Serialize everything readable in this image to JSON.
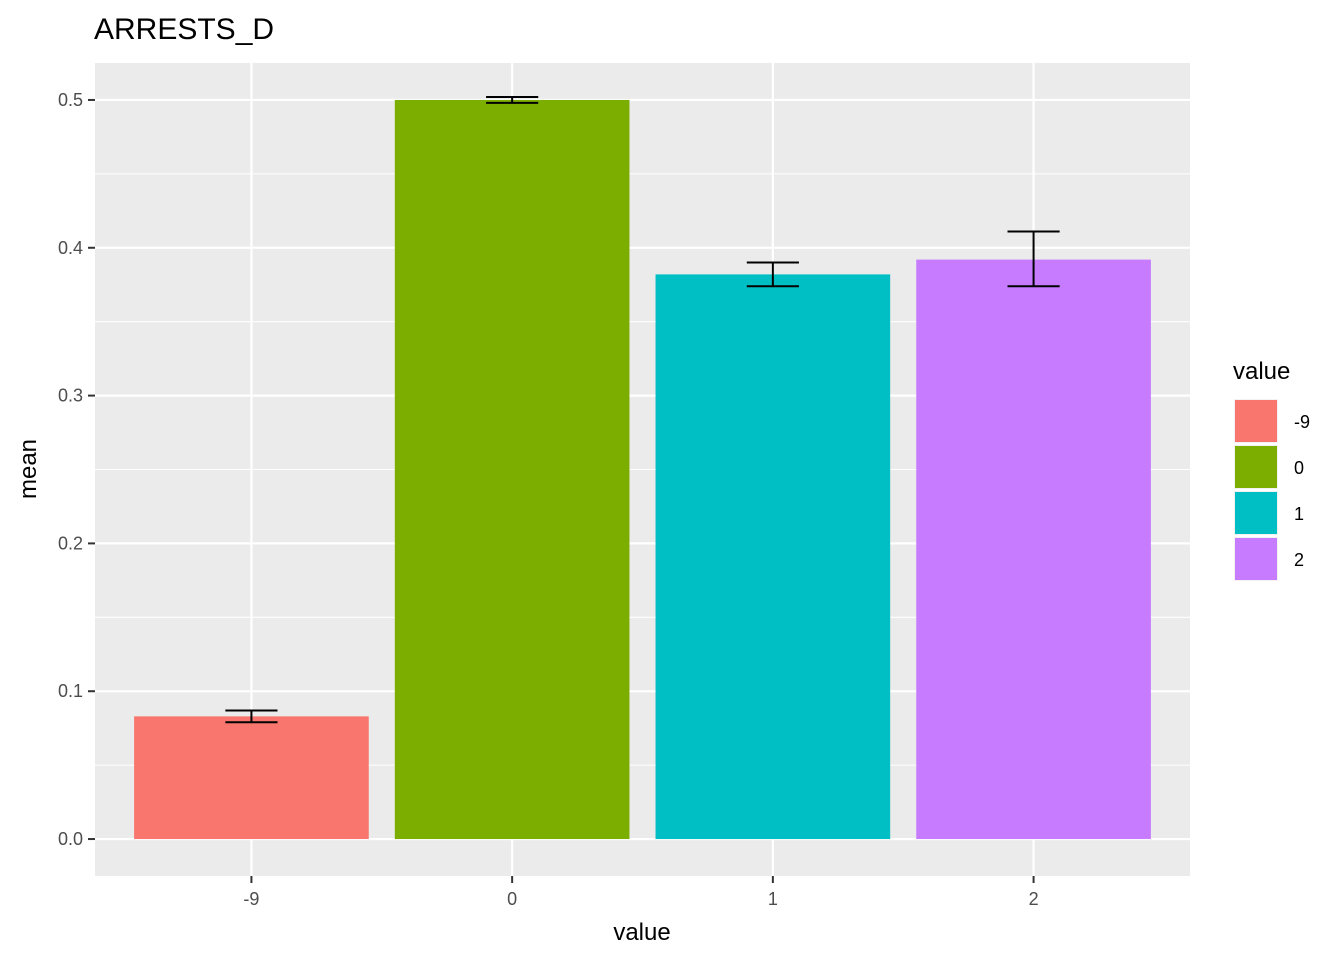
{
  "chart_data": {
    "type": "bar",
    "title": "ARRESTS_D",
    "xlabel": "value",
    "ylabel": "mean",
    "categories": [
      "-9",
      "0",
      "1",
      "2"
    ],
    "values": [
      0.083,
      0.5,
      0.382,
      0.392
    ],
    "error_low": [
      0.079,
      0.498,
      0.374,
      0.374
    ],
    "error_high": [
      0.087,
      0.502,
      0.39,
      0.411
    ],
    "colors": [
      "#F8766D",
      "#7CAE00",
      "#00BFC4",
      "#C77CFF"
    ],
    "ylim": [
      -0.025,
      0.525
    ],
    "yticks": [
      0.0,
      0.1,
      0.2,
      0.3,
      0.4,
      0.5
    ],
    "ytick_labels": [
      "0.0",
      "0.1",
      "0.2",
      "0.3",
      "0.4",
      "0.5"
    ],
    "grid": true,
    "legend": {
      "title": "value",
      "placement": "right",
      "entries": [
        "-9",
        "0",
        "1",
        "2"
      ]
    }
  }
}
